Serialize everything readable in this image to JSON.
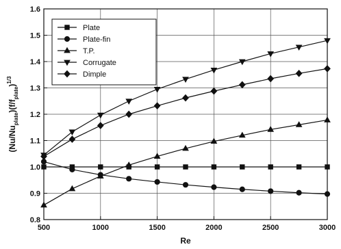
{
  "chart_data": {
    "type": "line",
    "title": "",
    "xlabel": "Re",
    "ylabel_main": "(Nu/Nu",
    "ylabel_sub1": "plate",
    "ylabel_mid": ")(f/f",
    "ylabel_sub2": "plate",
    "ylabel_end": ")",
    "ylabel_sup": "1/3",
    "xlim": [
      500,
      3000
    ],
    "ylim": [
      0.8,
      1.6
    ],
    "xticks": [
      500,
      1000,
      1500,
      2000,
      2500,
      3000
    ],
    "yticks": [
      0.8,
      0.9,
      1.0,
      1.1,
      1.2,
      1.3,
      1.4,
      1.5,
      1.6
    ],
    "grid": true,
    "legend_position": "top-left",
    "x": [
      500,
      750,
      1000,
      1250,
      1500,
      1750,
      2000,
      2250,
      2500,
      2750,
      3000
    ],
    "series": [
      {
        "name": "Plate",
        "marker": "square",
        "values": [
          1.0,
          1.0,
          1.0,
          1.0,
          1.0,
          1.0,
          1.0,
          1.0,
          1.0,
          1.0,
          1.0
        ]
      },
      {
        "name": "Plate-fin",
        "marker": "circle",
        "values": [
          1.02,
          0.99,
          0.97,
          0.955,
          0.943,
          0.932,
          0.923,
          0.915,
          0.908,
          0.902,
          0.897
        ]
      },
      {
        "name": "T.P.",
        "marker": "triangle-up",
        "values": [
          0.855,
          0.917,
          0.965,
          1.007,
          1.04,
          1.07,
          1.097,
          1.12,
          1.142,
          1.16,
          1.178
        ]
      },
      {
        "name": "Corrugate",
        "marker": "triangle-down",
        "values": [
          1.045,
          1.133,
          1.197,
          1.25,
          1.295,
          1.333,
          1.368,
          1.4,
          1.43,
          1.455,
          1.48
        ]
      },
      {
        "name": "Dimple",
        "marker": "diamond",
        "values": [
          1.04,
          1.105,
          1.157,
          1.2,
          1.232,
          1.262,
          1.288,
          1.312,
          1.335,
          1.355,
          1.373
        ]
      }
    ]
  }
}
